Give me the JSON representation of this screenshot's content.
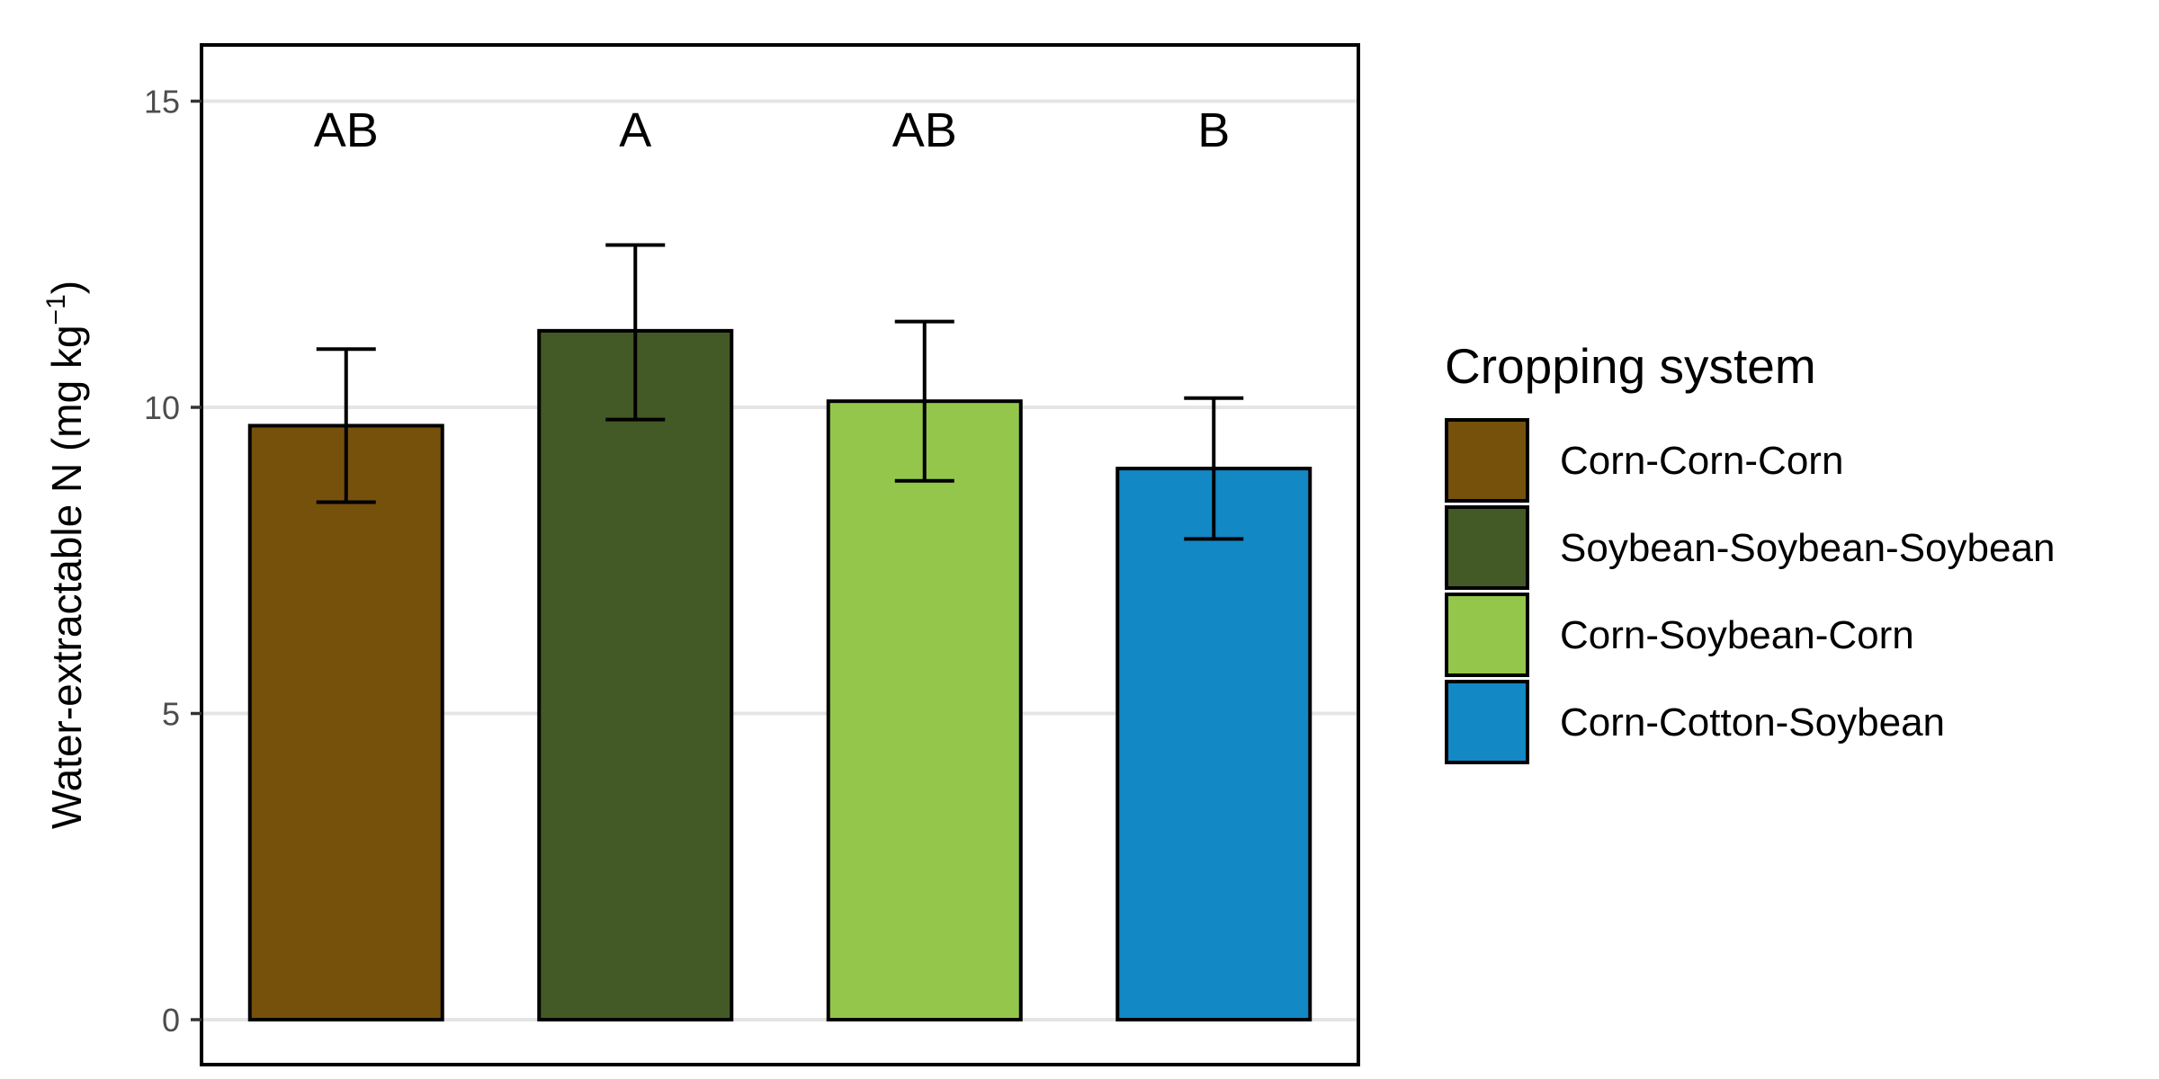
{
  "chart_data": {
    "type": "bar",
    "title": "",
    "xlabel": "",
    "ylabel": "Water-extractable N (mg kg",
    "ylabel_superscript": "−1",
    "ylabel_close": ")",
    "ylim": [
      -1,
      16
    ],
    "yticks": [
      0,
      5,
      10,
      15
    ],
    "grid": "horizontal major",
    "categories": [
      "Corn-Corn-Corn",
      "Soybean-Soybean-Soybean",
      "Corn-Soybean-Corn",
      "Corn-Cotton-Soybean"
    ],
    "values": [
      9.7,
      11.25,
      10.1,
      9.0
    ],
    "error_low": [
      8.45,
      9.8,
      8.8,
      7.85
    ],
    "error_high": [
      10.95,
      12.65,
      11.4,
      10.15
    ],
    "significance_letters": [
      "AB",
      "A",
      "AB",
      "B"
    ],
    "colors": [
      "#75510c",
      "#435a26",
      "#94c64b",
      "#1288c5"
    ],
    "legend": {
      "title": "Cropping system",
      "position": "right",
      "entries": [
        "Corn-Corn-Corn",
        "Soybean-Soybean-Soybean",
        "Corn-Soybean-Corn",
        "Corn-Cotton-Soybean"
      ]
    }
  }
}
